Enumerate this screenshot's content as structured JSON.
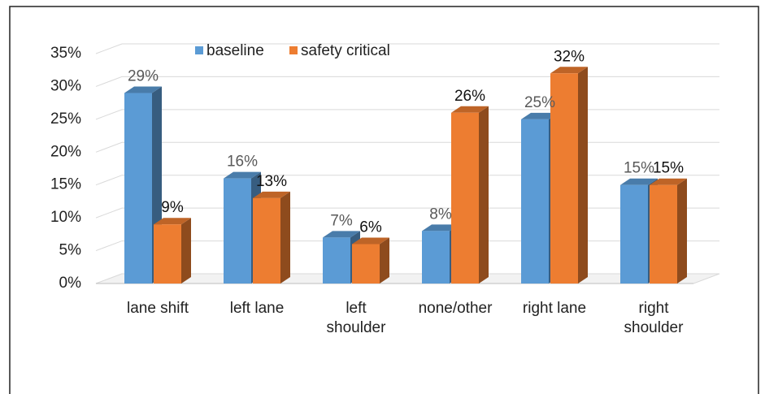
{
  "chart_data": {
    "type": "bar3d",
    "categories": [
      "lane shift",
      "left lane",
      "left shoulder",
      "none/other",
      "right lane",
      "right shoulder"
    ],
    "series": [
      {
        "name": "baseline",
        "color": "#5b9bd5",
        "values": [
          29,
          16,
          7,
          8,
          25,
          15
        ],
        "value_labels": [
          "29%",
          "16%",
          "7%",
          "8%",
          "25%",
          "15%"
        ]
      },
      {
        "name": "safety critical",
        "color": "#ed7d31",
        "values": [
          9,
          13,
          6,
          26,
          32,
          15
        ],
        "value_labels": [
          "9%",
          "13%",
          "6%",
          "26%",
          "32%",
          "15%"
        ]
      }
    ],
    "ylim": [
      0,
      35
    ],
    "yticks": [
      {
        "value": 0,
        "label": "0%"
      },
      {
        "value": 5,
        "label": "5%"
      },
      {
        "value": 10,
        "label": "10%"
      },
      {
        "value": 15,
        "label": "15%"
      },
      {
        "value": 20,
        "label": "20%"
      },
      {
        "value": 25,
        "label": "25%"
      },
      {
        "value": 30,
        "label": "30%"
      },
      {
        "value": 35,
        "label": "35%"
      }
    ],
    "grid": true,
    "legend": "top"
  }
}
